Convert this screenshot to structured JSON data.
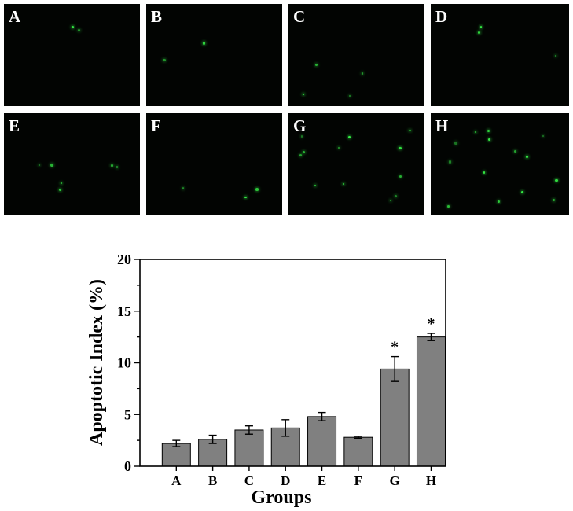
{
  "panels": [
    {
      "label": "A",
      "dots": 2
    },
    {
      "label": "B",
      "dots": 2
    },
    {
      "label": "C",
      "dots": 4
    },
    {
      "label": "D",
      "dots": 3
    },
    {
      "label": "E",
      "dots": 6
    },
    {
      "label": "F",
      "dots": 3
    },
    {
      "label": "G",
      "dots": 12
    },
    {
      "label": "H",
      "dots": 14
    }
  ],
  "chart_data": {
    "type": "bar",
    "categories": [
      "A",
      "B",
      "C",
      "D",
      "E",
      "F",
      "G",
      "H"
    ],
    "values": [
      2.2,
      2.6,
      3.5,
      3.7,
      4.8,
      2.8,
      9.4,
      12.5
    ],
    "errors": [
      0.3,
      0.4,
      0.4,
      0.8,
      0.4,
      0.1,
      1.2,
      0.35
    ],
    "significance": [
      "",
      "",
      "",
      "",
      "",
      "",
      "*",
      "*"
    ],
    "xlabel": "Groups",
    "ylabel": "Apoptotic Index (%)",
    "ylim": [
      0,
      20
    ],
    "yticks": [
      0,
      5,
      10,
      15,
      20
    ],
    "bar_color": "#808080"
  }
}
